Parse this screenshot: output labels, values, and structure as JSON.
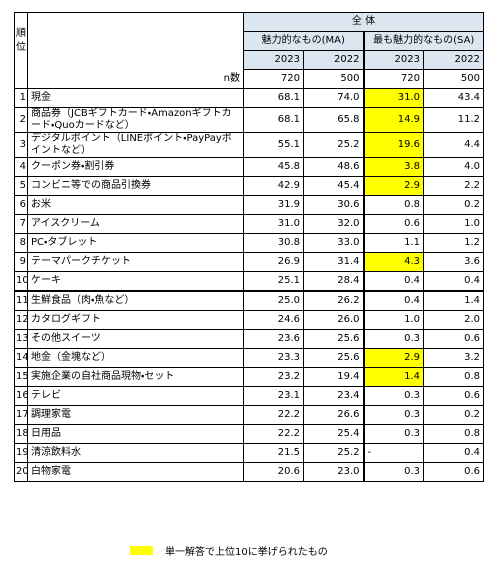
{
  "header": {
    "rank_label": "順位",
    "group_label": "全 体",
    "ma_label": "魅力的なもの(MA)",
    "sa_label": "最も魅力的なもの(SA)",
    "years": [
      "2023",
      "2022",
      "2023",
      "2022"
    ],
    "n_label": "n数",
    "n_values": [
      "720",
      "500",
      "720",
      "500"
    ]
  },
  "rows": [
    {
      "rank": 1,
      "item": "現金",
      "values": [
        "68.1",
        "74.0",
        "31.0",
        "43.4"
      ],
      "highlight": true
    },
    {
      "rank": 2,
      "item": "商品券（JCBギフトカード・Amazonギフトカード・Quoカードなど）",
      "values": [
        "68.1",
        "65.8",
        "14.9",
        "11.2"
      ],
      "highlight": true
    },
    {
      "rank": 3,
      "item": "デジタルポイント（LINEポイント・PayPayポイントなど）",
      "values": [
        "55.1",
        "25.2",
        "19.6",
        "4.4"
      ],
      "highlight": true
    },
    {
      "rank": 4,
      "item": "クーポン券・割引券",
      "values": [
        "45.8",
        "48.6",
        "3.8",
        "4.0"
      ],
      "highlight": true
    },
    {
      "rank": 5,
      "item": "コンビニ等での商品引換券",
      "values": [
        "42.9",
        "45.4",
        "2.9",
        "2.2"
      ],
      "highlight": true
    },
    {
      "rank": 6,
      "item": "お米",
      "values": [
        "31.9",
        "30.6",
        "0.8",
        "0.2"
      ],
      "highlight": false
    },
    {
      "rank": 7,
      "item": "アイスクリーム",
      "values": [
        "31.0",
        "32.0",
        "0.6",
        "1.0"
      ],
      "highlight": false
    },
    {
      "rank": 8,
      "item": "PC・タブレット",
      "values": [
        "30.8",
        "33.0",
        "1.1",
        "1.2"
      ],
      "highlight": false
    },
    {
      "rank": 9,
      "item": "テーマパークチケット",
      "values": [
        "26.9",
        "31.4",
        "4.3",
        "3.6"
      ],
      "highlight": true
    },
    {
      "rank": 10,
      "item": "ケーキ",
      "values": [
        "25.1",
        "28.4",
        "0.4",
        "0.4"
      ],
      "highlight": false
    },
    {
      "rank": 11,
      "item": "生鮮食品（肉・魚など）",
      "values": [
        "25.0",
        "26.2",
        "0.4",
        "1.4"
      ],
      "highlight": false
    },
    {
      "rank": 12,
      "item": "カタログギフト",
      "values": [
        "24.6",
        "26.0",
        "1.0",
        "2.0"
      ],
      "highlight": false
    },
    {
      "rank": 13,
      "item": "その他スイーツ",
      "values": [
        "23.6",
        "25.6",
        "0.3",
        "0.6"
      ],
      "highlight": false
    },
    {
      "rank": 14,
      "item": "地金（金塊など）",
      "values": [
        "23.3",
        "25.6",
        "2.9",
        "3.2"
      ],
      "highlight": true
    },
    {
      "rank": 15,
      "item": "実施企業の自社商品現物・セット",
      "values": [
        "23.2",
        "19.4",
        "1.4",
        "0.8"
      ],
      "highlight": true
    },
    {
      "rank": 16,
      "item": "テレビ",
      "values": [
        "23.1",
        "23.4",
        "0.3",
        "0.6"
      ],
      "highlight": false
    },
    {
      "rank": 17,
      "item": "調理家電",
      "values": [
        "22.2",
        "26.6",
        "0.3",
        "0.2"
      ],
      "highlight": false
    },
    {
      "rank": 18,
      "item": "日用品",
      "values": [
        "22.2",
        "25.4",
        "0.3",
        "0.8"
      ],
      "highlight": false
    },
    {
      "rank": 19,
      "item": "清涼飲料水",
      "values": [
        "21.5",
        "25.2",
        "-",
        "0.4"
      ],
      "highlight": false
    },
    {
      "rank": 20,
      "item": "白物家電",
      "values": [
        "20.6",
        "23.0",
        "0.3",
        "0.6"
      ],
      "highlight": false
    }
  ],
  "highlight_color": "#ffff00",
  "legend": {
    "label": "単一解答で上位10に挙げられたもの"
  }
}
